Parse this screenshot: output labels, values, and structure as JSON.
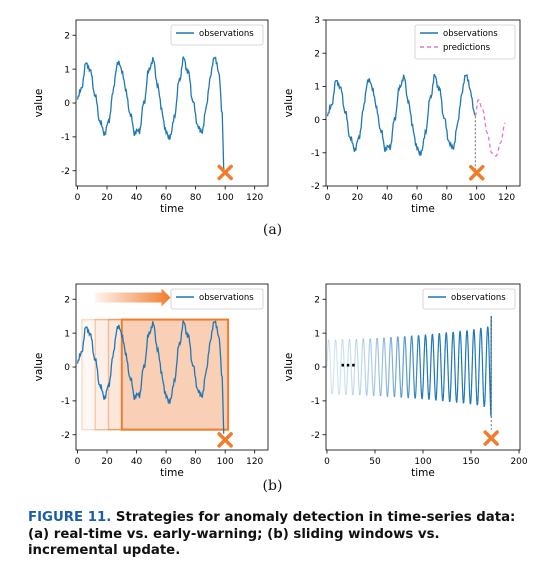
{
  "panel_labels": {
    "a": "(a)",
    "b": "(b)"
  },
  "caption": {
    "figure_label": "FIGURE 11.",
    "text": "Strategies for anomaly detection in time-series data: (a) real-time vs. early-warning; (b) sliding windows vs. incremental update."
  },
  "colors": {
    "observation": "#1f77b4",
    "prediction": "#e377c2",
    "marker": "#f07c2c",
    "window": "#f07c2c"
  },
  "chart_data": [
    {
      "id": "a-left",
      "type": "line",
      "xlabel": "time",
      "ylabel": "value",
      "xlim": [
        -1,
        129
      ],
      "ylim": [
        -2.45,
        2.45
      ],
      "xticks": [
        0,
        20,
        40,
        60,
        80,
        100,
        120
      ],
      "yticks": [
        -2,
        -1,
        0,
        1,
        2
      ],
      "legend": {
        "position": "top-right",
        "entries": [
          "observations"
        ]
      },
      "series": [
        {
          "name": "observations",
          "style": "solid",
          "x": [
            0,
            3,
            6,
            9,
            12,
            15,
            18,
            21,
            24,
            27,
            30,
            33,
            36,
            39,
            42,
            45,
            48,
            51,
            54,
            57,
            60,
            63,
            66,
            69,
            72,
            75,
            78,
            81,
            84,
            87,
            90,
            93,
            96,
            98,
            99
          ],
          "y": [
            0.1,
            0.5,
            1.2,
            0.9,
            0.2,
            -0.5,
            -0.9,
            -0.6,
            0.3,
            1.2,
            1.0,
            0.3,
            -0.4,
            -0.9,
            -0.8,
            0.0,
            0.9,
            1.3,
            0.6,
            -0.2,
            -0.9,
            -1.0,
            -0.3,
            0.7,
            1.3,
            0.9,
            0.1,
            -0.6,
            -0.9,
            -0.2,
            0.8,
            1.4,
            0.8,
            -0.3,
            -2.0
          ]
        }
      ],
      "markers": [
        {
          "x": 100,
          "y": -2.05,
          "symbol": "x"
        }
      ]
    },
    {
      "id": "a-right",
      "type": "line",
      "xlabel": "time",
      "ylabel": "value",
      "xlim": [
        -1,
        129
      ],
      "ylim": [
        -2,
        3
      ],
      "xticks": [
        0,
        20,
        40,
        60,
        80,
        100,
        120
      ],
      "yticks": [
        -2,
        -1,
        0,
        1,
        2,
        3
      ],
      "legend": {
        "position": "top-right",
        "entries": [
          "observations",
          "predictions"
        ]
      },
      "series": [
        {
          "name": "observations",
          "style": "solid",
          "x": [
            0,
            3,
            6,
            9,
            12,
            15,
            18,
            21,
            24,
            27,
            30,
            33,
            36,
            39,
            42,
            45,
            48,
            51,
            54,
            57,
            60,
            63,
            66,
            69,
            72,
            75,
            78,
            81,
            84,
            87,
            90,
            93,
            96,
            99
          ],
          "y": [
            0.1,
            0.5,
            1.2,
            0.9,
            0.2,
            -0.5,
            -0.9,
            -0.6,
            0.3,
            1.2,
            1.0,
            0.3,
            -0.4,
            -0.9,
            -0.8,
            0.0,
            0.9,
            1.3,
            0.6,
            -0.2,
            -0.9,
            -1.0,
            -0.3,
            0.7,
            1.3,
            0.9,
            0.1,
            -0.6,
            -0.9,
            -0.2,
            0.8,
            1.4,
            0.8,
            0.1
          ]
        },
        {
          "name": "predictions",
          "style": "dashed",
          "x": [
            99,
            101,
            104,
            107,
            110,
            113,
            116,
            119
          ],
          "y": [
            0.1,
            0.6,
            0.3,
            -0.4,
            -1.0,
            -1.1,
            -0.7,
            -0.1
          ]
        }
      ],
      "markers": [
        {
          "x": 100,
          "y": -1.6,
          "symbol": "x"
        }
      ]
    },
    {
      "id": "b-left",
      "type": "line",
      "xlabel": "time",
      "ylabel": "value",
      "xlim": [
        -1,
        129
      ],
      "ylim": [
        -2.45,
        2.45
      ],
      "xticks": [
        0,
        20,
        40,
        60,
        80,
        100,
        120
      ],
      "yticks": [
        -2,
        -1,
        0,
        1,
        2
      ],
      "legend": {
        "position": "top-right",
        "entries": [
          "observations"
        ]
      },
      "series": [
        {
          "name": "observations",
          "style": "solid",
          "x": [
            0,
            3,
            6,
            9,
            12,
            15,
            18,
            21,
            24,
            27,
            30,
            33,
            36,
            39,
            42,
            45,
            48,
            51,
            54,
            57,
            60,
            63,
            66,
            69,
            72,
            75,
            78,
            81,
            84,
            87,
            90,
            93,
            96,
            98,
            99
          ],
          "y": [
            0.1,
            0.5,
            1.2,
            0.9,
            0.2,
            -0.5,
            -0.9,
            -0.6,
            0.3,
            1.2,
            1.0,
            0.3,
            -0.4,
            -0.9,
            -0.8,
            0.0,
            0.9,
            1.3,
            0.6,
            -0.2,
            -0.9,
            -1.0,
            -0.3,
            0.7,
            1.3,
            0.9,
            0.1,
            -0.6,
            -0.9,
            -0.2,
            0.8,
            1.4,
            0.8,
            -0.3,
            -2.0
          ]
        }
      ],
      "windows": [
        {
          "start": 3,
          "end": 102,
          "opacity": 0.25
        },
        {
          "start": 12,
          "end": 102,
          "opacity": 0.35
        },
        {
          "start": 21,
          "end": 102,
          "opacity": 0.45
        },
        {
          "start": 30,
          "end": 102,
          "opacity": 1.0
        }
      ],
      "annotations": [
        {
          "type": "arrow",
          "direction": "right"
        }
      ],
      "markers": [
        {
          "x": 100,
          "y": -2.15,
          "symbol": "x"
        }
      ]
    },
    {
      "id": "b-right",
      "type": "line",
      "xlabel": "time",
      "ylabel": "value",
      "xlim": [
        -1,
        201
      ],
      "ylim": [
        -2.45,
        2.45
      ],
      "xticks": [
        0,
        50,
        100,
        150,
        200
      ],
      "yticks": [
        -2,
        -1,
        0,
        1,
        2
      ],
      "legend": {
        "position": "top-right",
        "entries": [
          "observations"
        ]
      },
      "series": [
        {
          "name": "observations",
          "style": "solid",
          "period": 7.2,
          "fade_until": 100,
          "x": [
            0,
            50,
            100,
            150,
            168,
            171
          ],
          "amplitude": [
            0.8,
            0.85,
            0.95,
            1.1,
            1.2,
            1.5
          ]
        }
      ],
      "annotations": [
        {
          "type": "ellipsis",
          "text": "..."
        }
      ],
      "markers": [
        {
          "x": 171,
          "y": -2.1,
          "symbol": "x"
        }
      ]
    }
  ]
}
